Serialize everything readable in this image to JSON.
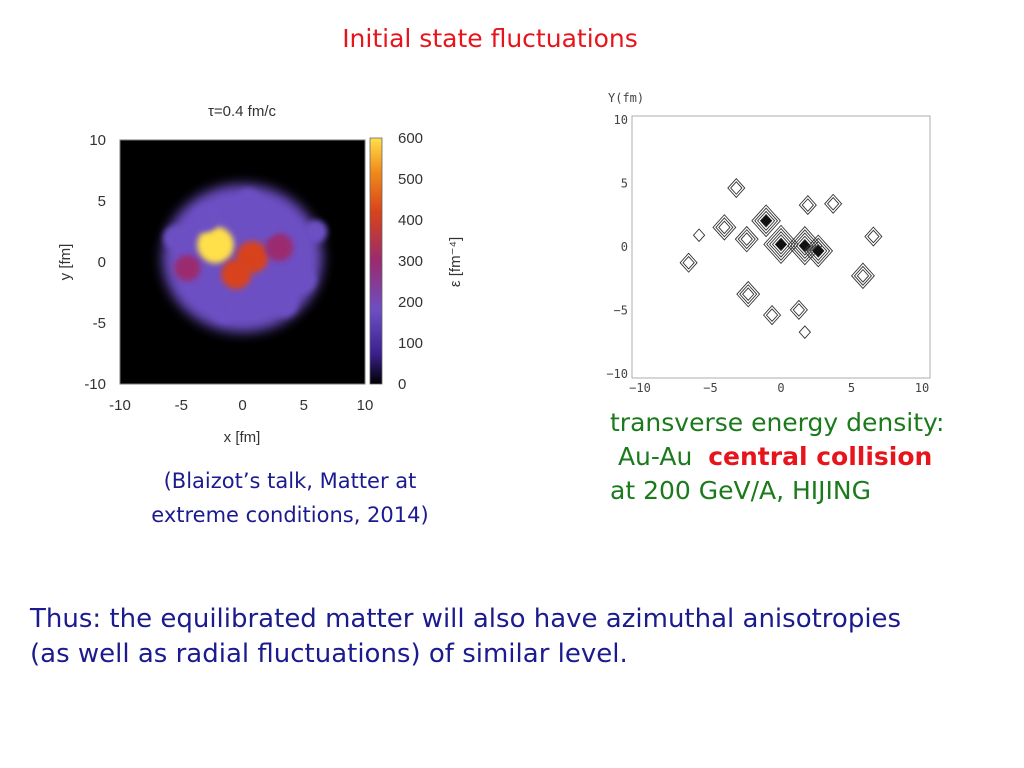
{
  "slide": {
    "title": "Initial state fluctuations"
  },
  "heatmap": {
    "title": "τ=0.4 fm/c",
    "xlabel": "x [fm]",
    "ylabel": "y [fm]",
    "colorbar_label": "ε [fm⁻⁴]",
    "x_ticks": [
      "-10",
      "-5",
      "0",
      "5",
      "10"
    ],
    "y_ticks": [
      "10",
      "5",
      "0",
      "-5",
      "-10"
    ],
    "colorbar_ticks": [
      "600",
      "500",
      "400",
      "300",
      "200",
      "100",
      "0"
    ]
  },
  "contour": {
    "ylabel": "Y(fm)",
    "x_ticks": [
      "−10",
      "−5",
      "0",
      "5",
      "10"
    ],
    "y_ticks": [
      "10",
      "5",
      "0",
      "−5",
      "−10"
    ]
  },
  "caption": {
    "line1": "(Blaizot’s talk, Matter at",
    "line2": "extreme conditions, 2014)"
  },
  "description": {
    "line1": "transverse energy density:",
    "line2_prefix": " Au-Au  ",
    "line2_highlight": "central collision",
    "line3": "at 200 GeV/A, HIJING"
  },
  "conclusion": {
    "line1": "Thus: the equilibrated matter will also have azimuthal anisotropies",
    "line2": "(as well as radial fluctuations) of similar level."
  },
  "chart_data": [
    {
      "type": "heatmap",
      "title": "τ=0.4 fm/c",
      "xlabel": "x [fm]",
      "ylabel": "y [fm]",
      "colorbar_label": "ε [fm⁻⁴]",
      "xlim": [
        -10,
        10
      ],
      "ylim": [
        -10,
        10
      ],
      "zlim": [
        0,
        600
      ],
      "colormap": [
        "#000000",
        "#3a1f8c",
        "#6d4fc4",
        "#9b2a6e",
        "#d8431a",
        "#f08a1a",
        "#ffe04a"
      ],
      "hotspots": [
        {
          "x": -2.2,
          "y": 1.4,
          "value": 560
        },
        {
          "x": 0.8,
          "y": 0.4,
          "value": 420
        },
        {
          "x": -0.5,
          "y": -1.0,
          "value": 360
        },
        {
          "x": 3.0,
          "y": 1.2,
          "value": 300
        },
        {
          "x": -4.5,
          "y": -0.5,
          "value": 250
        },
        {
          "x": -3.0,
          "y": 3.5,
          "value": 230
        },
        {
          "x": 2.0,
          "y": 3.2,
          "value": 210
        },
        {
          "x": 5.0,
          "y": -1.5,
          "value": 200
        },
        {
          "x": -1.5,
          "y": -4.0,
          "value": 190
        },
        {
          "x": 3.5,
          "y": -3.5,
          "value": 180
        },
        {
          "x": -5.5,
          "y": 2.0,
          "value": 170
        },
        {
          "x": 0.5,
          "y": 5.0,
          "value": 160
        },
        {
          "x": 6.0,
          "y": 2.5,
          "value": 150
        }
      ]
    },
    {
      "type": "contour",
      "xlabel": "",
      "ylabel": "Y(fm)",
      "xlim": [
        -10,
        10
      ],
      "ylim": [
        -10,
        10
      ],
      "peaks": [
        {
          "x": -3.8,
          "y": 1.5,
          "height": 3
        },
        {
          "x": -2.3,
          "y": 0.6,
          "height": 3
        },
        {
          "x": 0.0,
          "y": 0.2,
          "height": 5
        },
        {
          "x": 1.6,
          "y": 0.1,
          "height": 5
        },
        {
          "x": 2.5,
          "y": -0.3,
          "height": 4
        },
        {
          "x": -1.0,
          "y": 2.0,
          "height": 4
        },
        {
          "x": 5.5,
          "y": -2.2,
          "height": 3
        },
        {
          "x": -2.2,
          "y": -3.6,
          "height": 3
        },
        {
          "x": 1.2,
          "y": -4.8,
          "height": 2
        },
        {
          "x": 1.6,
          "y": -6.5,
          "height": 1
        },
        {
          "x": -0.6,
          "y": -5.2,
          "height": 2
        },
        {
          "x": 1.8,
          "y": 3.2,
          "height": 2
        },
        {
          "x": 3.5,
          "y": 3.3,
          "height": 2
        },
        {
          "x": -3.0,
          "y": 4.5,
          "height": 2
        },
        {
          "x": -6.2,
          "y": -1.2,
          "height": 2
        },
        {
          "x": 6.2,
          "y": 0.8,
          "height": 2
        },
        {
          "x": -5.5,
          "y": 0.9,
          "height": 1
        }
      ]
    }
  ]
}
